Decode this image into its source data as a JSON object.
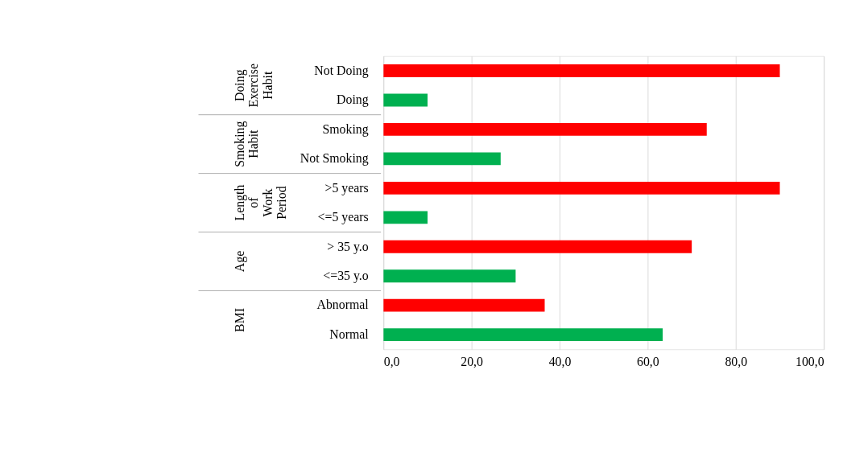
{
  "chart_data": {
    "type": "bar",
    "orientation": "horizontal",
    "categories": [
      "Not Doing",
      "Doing",
      "Smoking",
      "Not Smoking",
      ">5 years",
      "<=5 years",
      "> 35 y.o",
      "<=35 y.o",
      "Abnormal",
      "Normal"
    ],
    "values": [
      90.0,
      10.0,
      73.4,
      26.6,
      90.0,
      10.0,
      70.0,
      30.0,
      36.6,
      63.4
    ],
    "colors": [
      "#ff0000",
      "#00b050",
      "#ff0000",
      "#00b050",
      "#ff0000",
      "#00b050",
      "#ff0000",
      "#00b050",
      "#ff0000",
      "#00b050"
    ],
    "xlim": [
      0,
      100
    ],
    "xticks": [
      {
        "value": 0,
        "label": "0,0"
      },
      {
        "value": 20,
        "label": "20,0"
      },
      {
        "value": 40,
        "label": "40,0"
      },
      {
        "value": 60,
        "label": "60,0"
      },
      {
        "value": 80,
        "label": "80,0"
      },
      {
        "value": 100,
        "label": "100,0"
      }
    ],
    "grid": "x",
    "annotations": [
      "Doing Exercise Habit",
      "Smoking Habit",
      "Length of Work Period",
      "Age",
      "BMI"
    ]
  }
}
